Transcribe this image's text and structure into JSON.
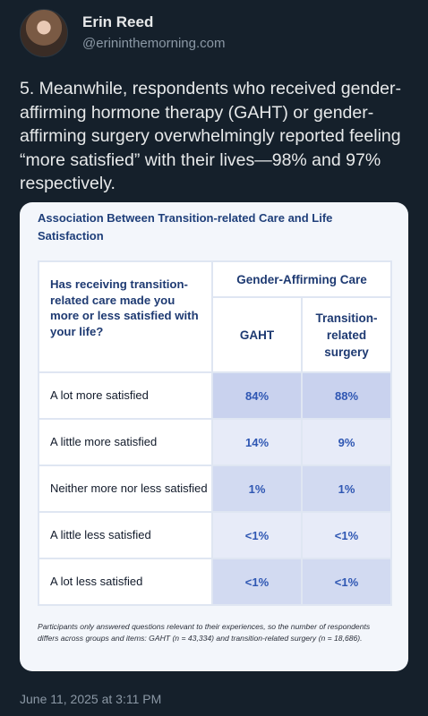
{
  "author": {
    "display_name": "Erin Reed",
    "handle": "@erininthemorning.com"
  },
  "tweet": {
    "text": "5. Meanwhile, respondents who received gender-affirming hormone therapy (GAHT) or gender-affirming surgery overwhelmingly reported feeling “more satisfied” with their lives—98% and 97% respectively.",
    "timestamp": "June 11, 2025 at 3:11 PM"
  },
  "card": {
    "title": "Association Between Transition-related Care and Life Satisfaction",
    "question": "Has receiving transition-related care made you more or less satisfied with your life?",
    "group_header": "Gender-Affirming Care",
    "columns": [
      "GAHT",
      "Transition-related surgery"
    ],
    "rows": [
      {
        "label": "A lot more satisfied",
        "values": [
          "84%",
          "88%"
        ],
        "shade": "#c9d2ee"
      },
      {
        "label": "A little more satisfied",
        "values": [
          "14%",
          "9%"
        ],
        "shade": "#e7ebf8"
      },
      {
        "label": "Neither more nor less satisfied",
        "values": [
          "1%",
          "1%"
        ],
        "shade": "#d2daf1"
      },
      {
        "label": "A little less satisfied",
        "values": [
          "<1%",
          "<1%"
        ],
        "shade": "#e7ebf8"
      },
      {
        "label": "A lot less satisfied",
        "values": [
          "<1%",
          "<1%"
        ],
        "shade": "#d2daf1"
      }
    ],
    "note": "Participants only answered questions relevant to their experiences, so the number of respondents differs across groups and items: GAHT (n = 43,334) and transition-related surgery (n = 18,686)."
  },
  "colors": {
    "background": "#15202b",
    "card_background": "#f3f6fb",
    "header_text": "#1e3a72",
    "value_text": "#2f57b3"
  }
}
